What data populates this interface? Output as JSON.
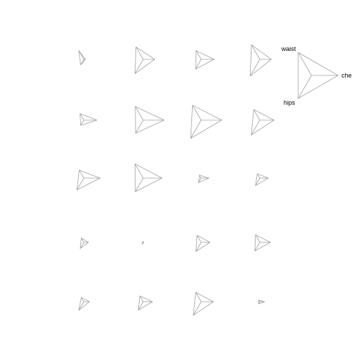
{
  "chart_data": {
    "type": "star",
    "variables": [
      "chest",
      "waist",
      "hips"
    ],
    "key_labels": {
      "chest": "chest",
      "waist": "waist",
      "hips": "hips"
    },
    "ncol": 4,
    "observations": [
      {
        "chest": 0.08,
        "waist": 0.48,
        "hips": 0.3
      },
      {
        "chest": 0.55,
        "waist": 0.68,
        "hips": 0.78
      },
      {
        "chest": 0.62,
        "waist": 0.48,
        "hips": 0.53
      },
      {
        "chest": 0.55,
        "waist": 0.8,
        "hips": 0.92
      },
      {
        "chest": 0.62,
        "waist": 0.36,
        "hips": 0.29
      },
      {
        "chest": 1.0,
        "waist": 0.75,
        "hips": 0.72
      },
      {
        "chest": 0.98,
        "waist": 0.82,
        "hips": 1.0
      },
      {
        "chest": 0.68,
        "waist": 0.58,
        "hips": 0.82
      },
      {
        "chest": 0.78,
        "waist": 0.44,
        "hips": 0.65
      },
      {
        "chest": 0.9,
        "waist": 0.78,
        "hips": 0.75
      },
      {
        "chest": 0.37,
        "waist": 0.16,
        "hips": 0.25
      },
      {
        "chest": 0.4,
        "waist": 0.24,
        "hips": 0.41
      },
      {
        "chest": 0.22,
        "waist": 0.24,
        "hips": 0.34
      },
      {
        "chest": 0.03,
        "waist": 0.05,
        "hips": 0.1
      },
      {
        "chest": 0.42,
        "waist": 0.39,
        "hips": 0.5
      },
      {
        "chest": 0.51,
        "waist": 0.41,
        "hips": 0.47
      },
      {
        "chest": 0.27,
        "waist": 0.24,
        "hips": 0.47
      },
      {
        "chest": 0.44,
        "waist": 0.32,
        "hips": 0.46
      },
      {
        "chest": 0.59,
        "waist": 0.52,
        "hips": 0.75
      },
      {
        "chest": 0.23,
        "waist": 0.09,
        "hips": 0.12
      }
    ],
    "colors": {
      "stroke": "#a0a0a0",
      "background": "#ffffff"
    },
    "grid": false,
    "key_placement": "top-right"
  }
}
